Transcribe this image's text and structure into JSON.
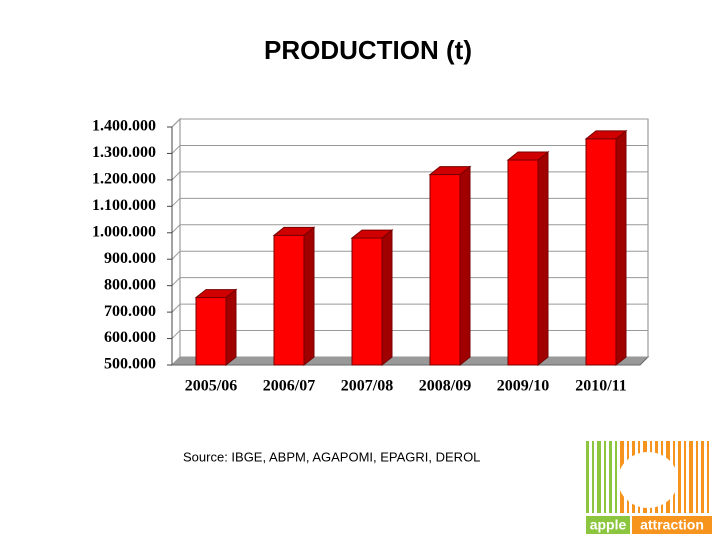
{
  "chart_data": {
    "type": "bar3d",
    "title": "PRODUCTION (t)",
    "categories": [
      "2005/06",
      "2006/07",
      "2007/08",
      "2008/09",
      "2009/10",
      "2010/11"
    ],
    "values": [
      755000,
      990000,
      980000,
      1220000,
      1275000,
      1355000
    ],
    "color": "#ff0000",
    "ylim": [
      500000,
      1400000
    ],
    "yticks": [
      {
        "value": 500000,
        "label": "500.000"
      },
      {
        "value": 600000,
        "label": "600.000"
      },
      {
        "value": 700000,
        "label": "700.000"
      },
      {
        "value": 800000,
        "label": "800.000"
      },
      {
        "value": 900000,
        "label": "900.000"
      },
      {
        "value": 1000000,
        "label": "1.000.000"
      },
      {
        "value": 1100000,
        "label": "1.100.000"
      },
      {
        "value": 1200000,
        "label": "1.200.000"
      },
      {
        "value": 1300000,
        "label": "1.300.000"
      },
      {
        "value": 1400000,
        "label": "1.400.000"
      }
    ],
    "grid": true,
    "source": "Source: IBGE, ABPM, AGAPOMI, EPAGRI, DEROL"
  },
  "logo": {
    "left": "apple",
    "right": "attraction"
  }
}
